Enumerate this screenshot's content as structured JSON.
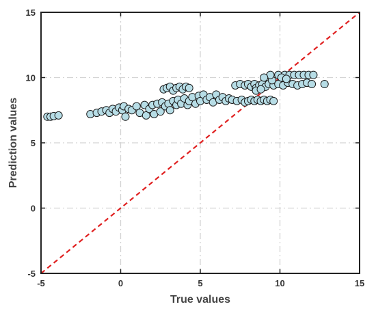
{
  "chart_data": {
    "type": "scatter",
    "title": "",
    "xlabel": "True values",
    "ylabel": "Prediction values",
    "xlim": [
      -5,
      15
    ],
    "ylim": [
      -5,
      15
    ],
    "xticks": [
      -5,
      0,
      5,
      10,
      15
    ],
    "yticks": [
      -5,
      0,
      5,
      10,
      15
    ],
    "xtick_labels": [
      "-5",
      "0",
      "5",
      "10",
      "15"
    ],
    "ytick_labels": [
      "-5",
      "0",
      "5",
      "10",
      "15"
    ],
    "grid": true,
    "reference_line": {
      "from": [
        -5,
        -5
      ],
      "to": [
        15,
        15
      ],
      "style": "dashed",
      "color": "#e02020"
    },
    "marker_fill": "#b7dde6",
    "marker_edge": "#1a1a1a",
    "points": [
      [
        -4.6,
        7.0
      ],
      [
        -4.4,
        7.0
      ],
      [
        -4.2,
        7.05
      ],
      [
        -3.9,
        7.1
      ],
      [
        -1.9,
        7.2
      ],
      [
        -1.5,
        7.3
      ],
      [
        -1.2,
        7.4
      ],
      [
        -0.9,
        7.5
      ],
      [
        -0.7,
        7.3
      ],
      [
        -0.5,
        7.6
      ],
      [
        -0.3,
        7.4
      ],
      [
        -0.1,
        7.7
      ],
      [
        0.1,
        7.5
      ],
      [
        0.2,
        7.8
      ],
      [
        0.3,
        7.0
      ],
      [
        0.5,
        7.6
      ],
      [
        0.7,
        7.5
      ],
      [
        1.0,
        7.8
      ],
      [
        1.2,
        7.3
      ],
      [
        1.5,
        7.9
      ],
      [
        1.6,
        7.1
      ],
      [
        1.8,
        7.6
      ],
      [
        2.0,
        7.9
      ],
      [
        2.1,
        7.2
      ],
      [
        2.3,
        8.0
      ],
      [
        2.5,
        7.4
      ],
      [
        2.6,
        8.1
      ],
      [
        2.8,
        7.8
      ],
      [
        3.0,
        8.0
      ],
      [
        3.1,
        7.5
      ],
      [
        3.3,
        8.2
      ],
      [
        3.5,
        7.9
      ],
      [
        3.6,
        8.3
      ],
      [
        3.8,
        8.0
      ],
      [
        4.0,
        8.4
      ],
      [
        4.2,
        7.9
      ],
      [
        4.3,
        8.2
      ],
      [
        4.5,
        8.5
      ],
      [
        4.7,
        8.0
      ],
      [
        4.9,
        8.6
      ],
      [
        5.0,
        8.2
      ],
      [
        5.2,
        8.7
      ],
      [
        5.4,
        8.3
      ],
      [
        5.6,
        8.5
      ],
      [
        5.8,
        8.1
      ],
      [
        6.0,
        8.7
      ],
      [
        6.2,
        8.3
      ],
      [
        6.4,
        8.5
      ],
      [
        6.6,
        8.2
      ],
      [
        6.8,
        8.4
      ],
      [
        2.7,
        9.1
      ],
      [
        2.9,
        9.2
      ],
      [
        3.1,
        9.3
      ],
      [
        3.3,
        9.0
      ],
      [
        3.5,
        9.2
      ],
      [
        3.7,
        9.3
      ],
      [
        3.9,
        9.1
      ],
      [
        4.1,
        9.3
      ],
      [
        4.3,
        9.2
      ],
      [
        7.0,
        8.3
      ],
      [
        7.3,
        8.2
      ],
      [
        7.6,
        8.3
      ],
      [
        7.8,
        8.1
      ],
      [
        8.0,
        8.2
      ],
      [
        8.2,
        8.3
      ],
      [
        8.4,
        8.2
      ],
      [
        8.6,
        8.3
      ],
      [
        8.8,
        8.2
      ],
      [
        9.0,
        8.3
      ],
      [
        9.2,
        8.2
      ],
      [
        9.4,
        8.3
      ],
      [
        9.6,
        8.2
      ],
      [
        7.2,
        9.4
      ],
      [
        7.5,
        9.5
      ],
      [
        7.8,
        9.4
      ],
      [
        8.0,
        9.5
      ],
      [
        8.2,
        9.3
      ],
      [
        8.4,
        9.5
      ],
      [
        8.5,
        9.2
      ],
      [
        8.7,
        9.4
      ],
      [
        8.9,
        9.5
      ],
      [
        9.1,
        9.3
      ],
      [
        9.3,
        9.5
      ],
      [
        9.6,
        9.4
      ],
      [
        9.9,
        9.5
      ],
      [
        10.2,
        9.4
      ],
      [
        10.5,
        9.6
      ],
      [
        10.8,
        9.5
      ],
      [
        11.1,
        9.4
      ],
      [
        11.4,
        9.5
      ],
      [
        11.7,
        9.6
      ],
      [
        12.0,
        9.5
      ],
      [
        12.8,
        9.5
      ],
      [
        8.5,
        9.0
      ],
      [
        8.8,
        9.1
      ],
      [
        9.5,
        9.8
      ],
      [
        9.4,
        10.2
      ],
      [
        9.9,
        10.2
      ],
      [
        10.3,
        10.2
      ],
      [
        10.6,
        10.2
      ],
      [
        10.9,
        10.2
      ],
      [
        11.2,
        10.2
      ],
      [
        11.5,
        10.2
      ],
      [
        11.8,
        10.2
      ],
      [
        12.1,
        10.2
      ],
      [
        9.0,
        10.0
      ],
      [
        10.1,
        10.0
      ],
      [
        10.4,
        9.9
      ]
    ]
  }
}
